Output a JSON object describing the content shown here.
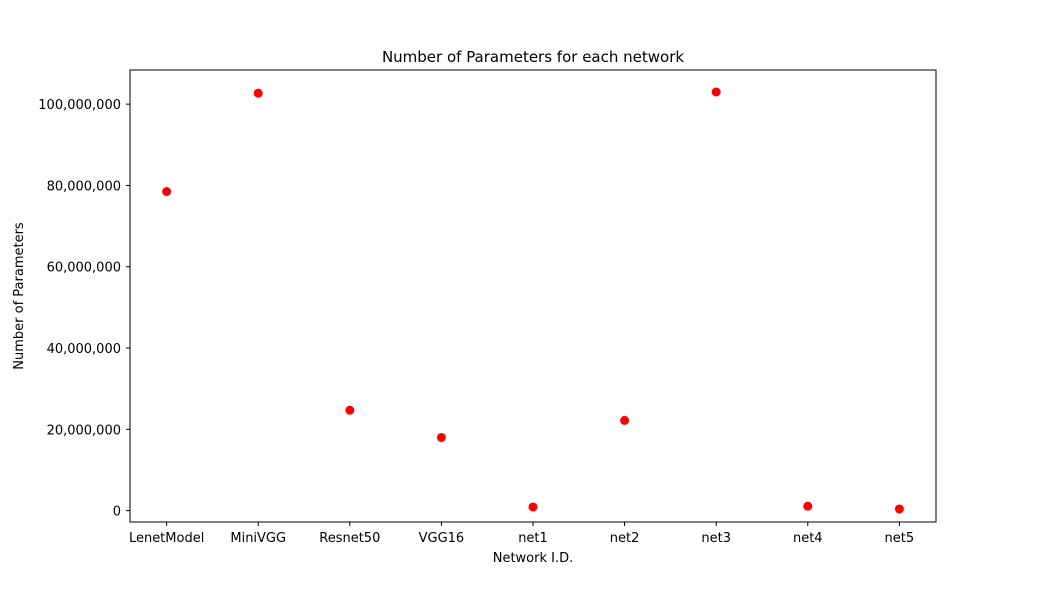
{
  "chart_data": {
    "type": "scatter",
    "title": "Number of Parameters for each network",
    "xlabel": "Network I.D.",
    "ylabel": "Number of Parameters",
    "categories": [
      "LenetModel",
      "MiniVGG",
      "Resnet50",
      "VGG16",
      "net1",
      "net2",
      "net3",
      "net4",
      "net5"
    ],
    "values": [
      78500000,
      102700000,
      24700000,
      18000000,
      900000,
      22200000,
      103000000,
      1100000,
      400000
    ],
    "ylim": [
      -2800000,
      108400000
    ],
    "yticks": [
      0,
      20000000,
      40000000,
      60000000,
      80000000,
      100000000
    ],
    "ytick_labels": [
      "0",
      "20,000,000",
      "40,000,000",
      "60,000,000",
      "80,000,000",
      "100,000,000"
    ],
    "marker_color": "#ff0000",
    "grid": false,
    "legend": false
  }
}
